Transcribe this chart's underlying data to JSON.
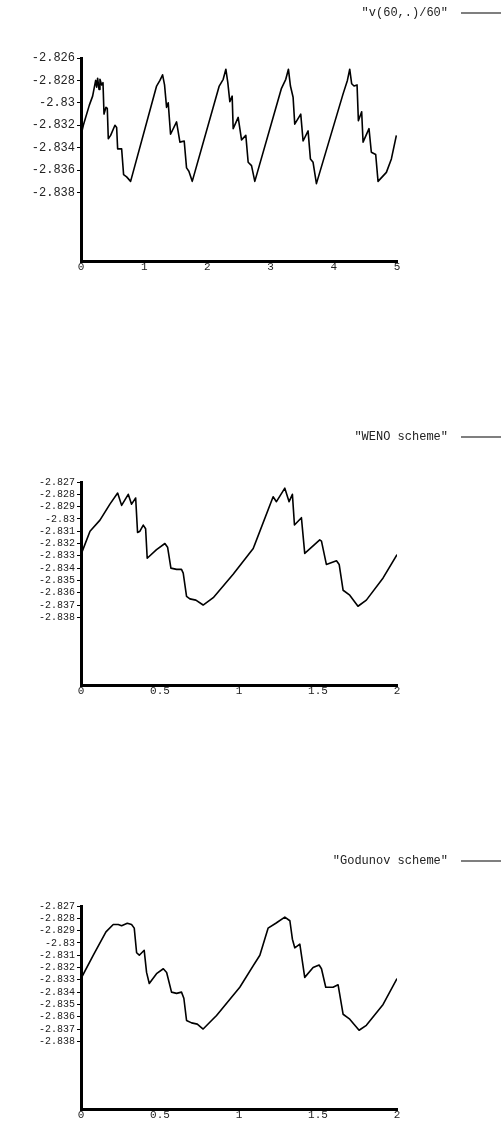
{
  "chart_data": [
    {
      "type": "line",
      "legend": "top right",
      "grid": false,
      "marker": "none",
      "x": [
        0,
        0.037,
        0.132,
        0.184,
        0.232,
        0.248,
        0.263,
        0.285,
        0.3,
        0.327,
        0.348,
        0.364,
        0.395,
        0.416,
        0.432,
        0.469,
        0.537,
        0.564,
        0.58,
        0.643,
        0.674,
        0.722,
        0.785,
        1.196,
        1.249,
        1.291,
        1.322,
        1.354,
        1.38,
        1.417,
        1.512,
        1.565,
        1.633,
        1.67,
        1.707,
        1.76,
        2.187,
        2.25,
        2.292,
        2.323,
        2.355,
        2.392,
        2.408,
        2.487,
        2.54,
        2.608,
        2.645,
        2.698,
        2.75,
        3.172,
        3.24,
        3.282,
        3.314,
        3.356,
        3.382,
        3.477,
        3.514,
        3.593,
        3.63,
        3.672,
        3.725,
        4.147,
        4.215,
        4.252,
        4.283,
        4.32,
        4.368,
        4.389,
        4.441,
        4.463,
        4.557,
        4.594,
        4.663,
        4.7,
        4.832,
        4.911,
        4.99
      ],
      "series": [
        {
          "name": "\"v(60,.)/60\"",
          "color": "#000000",
          "values": [
            -2.8329,
            -2.832,
            -2.8302,
            -2.8294,
            -2.828,
            -2.8286,
            -2.8278,
            -2.8288,
            -2.8279,
            -2.8284,
            -2.8282,
            -2.831,
            -2.8304,
            -2.8305,
            -2.8332,
            -2.8329,
            -2.832,
            -2.8322,
            -2.8341,
            -2.8341,
            -2.8364,
            -2.8366,
            -2.837,
            -2.8285,
            -2.828,
            -2.8275,
            -2.8284,
            -2.8304,
            -2.83,
            -2.8328,
            -2.8317,
            -2.8335,
            -2.8334,
            -2.8358,
            -2.8361,
            -2.837,
            -2.8285,
            -2.8279,
            -2.827,
            -2.8282,
            -2.8299,
            -2.8294,
            -2.8323,
            -2.8313,
            -2.8333,
            -2.8329,
            -2.8353,
            -2.8356,
            -2.837,
            -2.8287,
            -2.8279,
            -2.827,
            -2.8285,
            -2.8295,
            -2.8319,
            -2.831,
            -2.8334,
            -2.8325,
            -2.835,
            -2.8353,
            -2.8372,
            -2.8292,
            -2.828,
            -2.827,
            -2.8283,
            -2.8285,
            -2.8284,
            -2.8316,
            -2.8308,
            -2.8335,
            -2.8323,
            -2.8344,
            -2.8346,
            -2.837,
            -2.8362,
            -2.835,
            -2.8329
          ]
        }
      ],
      "xlim": [
        0,
        5
      ],
      "xticks": [
        0,
        1,
        2,
        3,
        4,
        5
      ],
      "ylim": [
        -2.8441,
        -2.826
      ],
      "yticks": [
        -2.826,
        -2.828,
        -2.83,
        -2.832,
        -2.834,
        -2.836,
        -2.838
      ]
    },
    {
      "type": "line",
      "legend": "top right",
      "grid": false,
      "marker": "none",
      "x": [
        0,
        0.057,
        0.12,
        0.183,
        0.232,
        0.257,
        0.299,
        0.32,
        0.346,
        0.358,
        0.373,
        0.394,
        0.409,
        0.419,
        0.478,
        0.531,
        0.548,
        0.569,
        0.605,
        0.636,
        0.647,
        0.668,
        0.689,
        0.727,
        0.773,
        0.837,
        0.963,
        1.09,
        1.216,
        1.237,
        1.29,
        1.317,
        1.338,
        1.351,
        1.395,
        1.416,
        1.511,
        1.522,
        1.553,
        1.617,
        1.634,
        1.659,
        1.701,
        1.753,
        1.806,
        1.912,
        2.0
      ],
      "series": [
        {
          "name": "\"WENO scheme\"",
          "color": "#000000",
          "values": [
            -2.8329,
            -2.831,
            -2.8301,
            -2.8288,
            -2.8279,
            -2.8289,
            -2.828,
            -2.8288,
            -2.8283,
            -2.8311,
            -2.831,
            -2.8305,
            -2.8308,
            -2.8332,
            -2.8325,
            -2.832,
            -2.8323,
            -2.834,
            -2.8341,
            -2.8341,
            -2.8344,
            -2.8363,
            -2.8365,
            -2.8366,
            -2.837,
            -2.8364,
            -2.8345,
            -2.8324,
            -2.8282,
            -2.8286,
            -2.8275,
            -2.8286,
            -2.828,
            -2.8305,
            -2.8299,
            -2.8328,
            -2.8317,
            -2.8318,
            -2.8337,
            -2.8334,
            -2.8337,
            -2.8358,
            -2.8362,
            -2.8371,
            -2.8366,
            -2.8348,
            -2.8329
          ]
        }
      ],
      "xlim": [
        0,
        2
      ],
      "xticks": [
        0,
        0.5,
        1,
        1.5,
        2
      ],
      "ylim": [
        -2.8435,
        -2.827
      ],
      "yticks": [
        -2.827,
        -2.828,
        -2.829,
        -2.83,
        -2.831,
        -2.832,
        -2.833,
        -2.834,
        -2.835,
        -2.836,
        -2.837,
        -2.838
      ]
    },
    {
      "type": "line",
      "legend": "top right",
      "grid": false,
      "marker": "none",
      "x": [
        0,
        0.078,
        0.158,
        0.204,
        0.236,
        0.257,
        0.293,
        0.32,
        0.337,
        0.352,
        0.369,
        0.4,
        0.415,
        0.432,
        0.478,
        0.521,
        0.542,
        0.573,
        0.605,
        0.636,
        0.651,
        0.668,
        0.7,
        0.736,
        0.773,
        0.858,
        1.005,
        1.132,
        1.184,
        1.233,
        1.29,
        1.322,
        1.338,
        1.353,
        1.385,
        1.416,
        1.469,
        1.507,
        1.522,
        1.549,
        1.595,
        1.627,
        1.659,
        1.701,
        1.76,
        1.806,
        1.912,
        2.0
      ],
      "series": [
        {
          "name": "\"Godunov scheme\"",
          "color": "#000000",
          "values": [
            -2.8329,
            -2.831,
            -2.8291,
            -2.8285,
            -2.8285,
            -2.8286,
            -2.8284,
            -2.8285,
            -2.8288,
            -2.8308,
            -2.831,
            -2.8306,
            -2.8324,
            -2.8333,
            -2.8325,
            -2.8321,
            -2.8324,
            -2.834,
            -2.8341,
            -2.834,
            -2.8345,
            -2.8363,
            -2.8365,
            -2.8366,
            -2.837,
            -2.8359,
            -2.8336,
            -2.831,
            -2.8288,
            -2.8284,
            -2.8279,
            -2.8282,
            -2.8297,
            -2.8304,
            -2.8301,
            -2.8328,
            -2.832,
            -2.8318,
            -2.8321,
            -2.8336,
            -2.8336,
            -2.8334,
            -2.8358,
            -2.8362,
            -2.8371,
            -2.8367,
            -2.835,
            -2.8329
          ]
        }
      ],
      "xlim": [
        0,
        2
      ],
      "xticks": [
        0,
        0.5,
        1,
        1.5,
        2
      ],
      "ylim": [
        -2.8435,
        -2.827
      ],
      "yticks": [
        -2.827,
        -2.828,
        -2.829,
        -2.83,
        -2.831,
        -2.832,
        -2.833,
        -2.834,
        -2.835,
        -2.836,
        -2.837,
        -2.838
      ]
    }
  ]
}
